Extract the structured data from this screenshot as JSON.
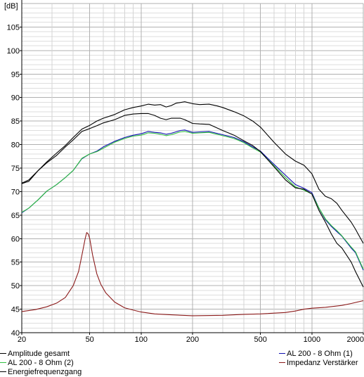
{
  "chart_data": {
    "type": "line",
    "title": "",
    "ylabel": "[dB]",
    "xlabel": "",
    "xscale": "log",
    "xlim": [
      20,
      2000
    ],
    "ylim": [
      40,
      110
    ],
    "grid": true,
    "x_tick_labels": [
      "20",
      "50",
      "100",
      "200",
      "500",
      "1000",
      "2000"
    ],
    "x_tick_values": [
      20,
      50,
      100,
      200,
      500,
      1000,
      2000
    ],
    "y_tick_values": [
      40,
      45,
      50,
      55,
      60,
      65,
      70,
      75,
      80,
      85,
      90,
      95,
      100,
      105
    ],
    "legend_placement": "bottom",
    "series": [
      {
        "name": "Amplitude gesamt",
        "color": "#000000",
        "points": [
          [
            20,
            71.8
          ],
          [
            22,
            72.5
          ],
          [
            25,
            74.5
          ],
          [
            28,
            76.3
          ],
          [
            32,
            78.2
          ],
          [
            36,
            79.8
          ],
          [
            40,
            81.5
          ],
          [
            45,
            83.3
          ],
          [
            50,
            84.1
          ],
          [
            55,
            85
          ],
          [
            60,
            85.6
          ],
          [
            70,
            86.4
          ],
          [
            80,
            87.4
          ],
          [
            90,
            87.9
          ],
          [
            100,
            88.2
          ],
          [
            110,
            88.6
          ],
          [
            120,
            88.4
          ],
          [
            130,
            88.5
          ],
          [
            140,
            88
          ],
          [
            150,
            88.3
          ],
          [
            160,
            88.8
          ],
          [
            180,
            89.1
          ],
          [
            200,
            88.7
          ],
          [
            220,
            88.5
          ],
          [
            250,
            88.6
          ],
          [
            280,
            88.2
          ],
          [
            300,
            87.9
          ],
          [
            350,
            87
          ],
          [
            400,
            86.1
          ],
          [
            450,
            85
          ],
          [
            500,
            83.7
          ],
          [
            600,
            80.5
          ],
          [
            700,
            78
          ],
          [
            800,
            76.5
          ],
          [
            900,
            75.6
          ],
          [
            1000,
            73.8
          ],
          [
            1100,
            70.5
          ],
          [
            1200,
            69
          ],
          [
            1300,
            68.5
          ],
          [
            1400,
            67.5
          ],
          [
            1500,
            66
          ],
          [
            1700,
            63.5
          ],
          [
            1800,
            62
          ],
          [
            2000,
            59
          ]
        ]
      },
      {
        "name": "AL 200 - 8 Ohm (1)",
        "color": "#1010b0",
        "points": [
          [
            20,
            65.5
          ],
          [
            22,
            66.5
          ],
          [
            25,
            68.3
          ],
          [
            28,
            70.1
          ],
          [
            32,
            71.5
          ],
          [
            36,
            73
          ],
          [
            40,
            74.5
          ],
          [
            45,
            77
          ],
          [
            50,
            78
          ],
          [
            55,
            78.6
          ],
          [
            60,
            79.5
          ],
          [
            70,
            80.7
          ],
          [
            80,
            81.5
          ],
          [
            90,
            82
          ],
          [
            100,
            82.3
          ],
          [
            110,
            82.8
          ],
          [
            120,
            82.6
          ],
          [
            130,
            82.5
          ],
          [
            140,
            82.2
          ],
          [
            150,
            82.4
          ],
          [
            170,
            83
          ],
          [
            180,
            83.1
          ],
          [
            200,
            82.6
          ],
          [
            220,
            82.7
          ],
          [
            250,
            82.8
          ],
          [
            300,
            82.1
          ],
          [
            350,
            81.5
          ],
          [
            400,
            80.6
          ],
          [
            450,
            79.5
          ],
          [
            500,
            78.6
          ],
          [
            600,
            75.8
          ],
          [
            700,
            73.5
          ],
          [
            800,
            71.5
          ],
          [
            900,
            70.7
          ],
          [
            1000,
            69.8
          ],
          [
            1100,
            66.5
          ],
          [
            1200,
            64
          ],
          [
            1300,
            62.6
          ],
          [
            1400,
            61.5
          ],
          [
            1500,
            60.5
          ],
          [
            1700,
            58
          ],
          [
            1800,
            57
          ],
          [
            2000,
            53.3
          ]
        ]
      },
      {
        "name": "AL 200 - 8 Ohm (2)",
        "color": "#30c040",
        "points": [
          [
            20,
            65.6
          ],
          [
            22,
            66.5
          ],
          [
            25,
            68.3
          ],
          [
            28,
            70.1
          ],
          [
            32,
            71.5
          ],
          [
            36,
            73
          ],
          [
            40,
            74.5
          ],
          [
            45,
            77.1
          ],
          [
            50,
            78
          ],
          [
            55,
            78.5
          ],
          [
            60,
            79.2
          ],
          [
            70,
            80.5
          ],
          [
            80,
            81.3
          ],
          [
            90,
            81.8
          ],
          [
            100,
            82
          ],
          [
            110,
            82.5
          ],
          [
            120,
            82.4
          ],
          [
            130,
            82.2
          ],
          [
            140,
            81.9
          ],
          [
            150,
            82.1
          ],
          [
            170,
            82.7
          ],
          [
            180,
            82.8
          ],
          [
            200,
            82.4
          ],
          [
            220,
            82.5
          ],
          [
            250,
            82.6
          ],
          [
            300,
            81.9
          ],
          [
            350,
            81.3
          ],
          [
            400,
            80.4
          ],
          [
            450,
            79.3
          ],
          [
            500,
            78.4
          ],
          [
            600,
            75.5
          ],
          [
            700,
            73
          ],
          [
            800,
            71
          ],
          [
            900,
            70.3
          ],
          [
            1000,
            69.5
          ],
          [
            1100,
            66.5
          ],
          [
            1200,
            64.2
          ],
          [
            1300,
            62.8
          ],
          [
            1400,
            61.7
          ],
          [
            1500,
            60.6
          ],
          [
            1700,
            58.2
          ],
          [
            1800,
            57.2
          ],
          [
            2000,
            53.5
          ]
        ]
      },
      {
        "name": "Impedanz Verstärker",
        "color": "#8b1a1a",
        "points": [
          [
            20,
            44.5
          ],
          [
            24,
            44.9
          ],
          [
            28,
            45.5
          ],
          [
            32,
            46.3
          ],
          [
            36,
            47.5
          ],
          [
            40,
            50
          ],
          [
            43,
            53
          ],
          [
            45,
            56.5
          ],
          [
            47,
            60
          ],
          [
            48,
            61.3
          ],
          [
            49,
            61
          ],
          [
            50,
            60
          ],
          [
            52,
            56.5
          ],
          [
            55,
            52.5
          ],
          [
            58,
            50.3
          ],
          [
            62,
            48.5
          ],
          [
            70,
            46.5
          ],
          [
            80,
            45.3
          ],
          [
            90,
            44.8
          ],
          [
            100,
            44.4
          ],
          [
            120,
            44
          ],
          [
            150,
            43.8
          ],
          [
            200,
            43.6
          ],
          [
            300,
            43.7
          ],
          [
            400,
            43.9
          ],
          [
            500,
            44
          ],
          [
            700,
            44.3
          ],
          [
            800,
            44.6
          ],
          [
            900,
            45
          ],
          [
            1000,
            45.2
          ],
          [
            1200,
            45.4
          ],
          [
            1500,
            45.8
          ],
          [
            1700,
            46.2
          ],
          [
            2000,
            46.8
          ]
        ]
      },
      {
        "name": "Energiefrequenzgang",
        "color": "#000000",
        "points": [
          [
            20,
            71.7
          ],
          [
            22,
            72.2
          ],
          [
            25,
            74.5
          ],
          [
            28,
            76.1
          ],
          [
            32,
            77.7
          ],
          [
            36,
            79.5
          ],
          [
            40,
            81
          ],
          [
            45,
            82.8
          ],
          [
            50,
            83.4
          ],
          [
            55,
            84
          ],
          [
            60,
            84.6
          ],
          [
            70,
            85.3
          ],
          [
            80,
            86.2
          ],
          [
            90,
            86.5
          ],
          [
            100,
            86.6
          ],
          [
            110,
            86.6
          ],
          [
            120,
            86.2
          ],
          [
            130,
            85.6
          ],
          [
            140,
            85.3
          ],
          [
            150,
            85.6
          ],
          [
            170,
            85.6
          ],
          [
            180,
            85.3
          ],
          [
            200,
            84.5
          ],
          [
            220,
            84.4
          ],
          [
            250,
            84.3
          ],
          [
            300,
            83
          ],
          [
            350,
            82
          ],
          [
            400,
            80.8
          ],
          [
            450,
            79.8
          ],
          [
            500,
            78.5
          ],
          [
            600,
            75.3
          ],
          [
            700,
            72.5
          ],
          [
            800,
            70.8
          ],
          [
            900,
            70.5
          ],
          [
            1000,
            69.5
          ],
          [
            1100,
            66
          ],
          [
            1200,
            63.5
          ],
          [
            1300,
            61
          ],
          [
            1400,
            59
          ],
          [
            1500,
            58
          ],
          [
            1700,
            55
          ],
          [
            1800,
            53
          ],
          [
            2000,
            49.7
          ]
        ]
      }
    ],
    "legend": [
      "Amplitude gesamt",
      "AL 200 - 8 Ohm (2)",
      "Energiefrequenzgang",
      "AL 200 - 8 Ohm (1)",
      "Impedanz Verstärker"
    ]
  }
}
